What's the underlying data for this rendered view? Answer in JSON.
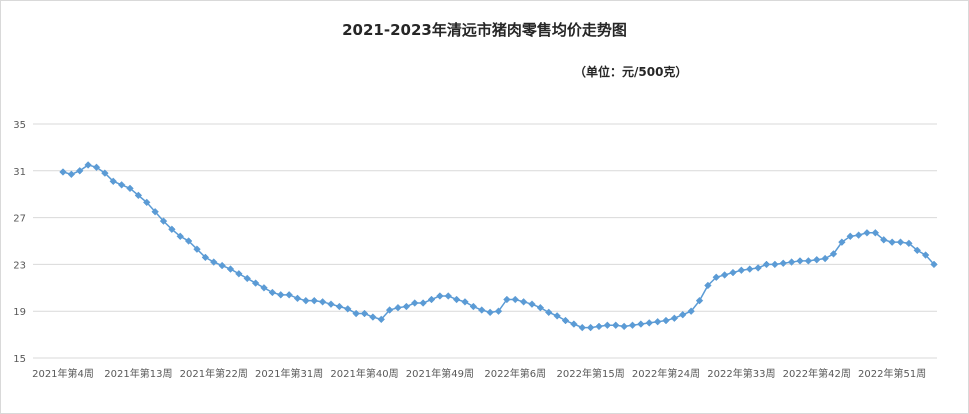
{
  "chart_data": {
    "type": "line",
    "title": "2021-2023年清远市猪肉零售均价走势图",
    "subtitle": "（单位：元/500克）",
    "ylim": [
      15,
      35
    ],
    "yticks": [
      15,
      19,
      23,
      27,
      31,
      35
    ],
    "grid": true,
    "xtick_labels": [
      {
        "index": 0,
        "label": "2021年第4周"
      },
      {
        "index": 9,
        "label": "2021年第13周"
      },
      {
        "index": 18,
        "label": "2021年第22周"
      },
      {
        "index": 27,
        "label": "2021年第31周"
      },
      {
        "index": 36,
        "label": "2021年第40周"
      },
      {
        "index": 45,
        "label": "2021年第49周"
      },
      {
        "index": 54,
        "label": "2022年第6周"
      },
      {
        "index": 63,
        "label": "2022年第15周"
      },
      {
        "index": 72,
        "label": "2022年第24周"
      },
      {
        "index": 81,
        "label": "2022年第33周"
      },
      {
        "index": 90,
        "label": "2022年第42周"
      },
      {
        "index": 99,
        "label": "2022年第51周"
      }
    ],
    "series": [
      {
        "color": "#5b9bd5",
        "values": [
          30.9,
          30.7,
          31.0,
          31.5,
          31.3,
          30.8,
          30.1,
          29.8,
          29.5,
          28.9,
          28.3,
          27.5,
          26.7,
          26.0,
          25.4,
          25.0,
          24.3,
          23.6,
          23.2,
          22.9,
          22.6,
          22.2,
          21.8,
          21.4,
          21.0,
          20.6,
          20.4,
          20.4,
          20.1,
          19.9,
          19.9,
          19.8,
          19.6,
          19.4,
          19.2,
          18.8,
          18.8,
          18.5,
          18.3,
          19.1,
          19.3,
          19.4,
          19.7,
          19.7,
          20.0,
          20.3,
          20.3,
          20.0,
          19.8,
          19.4,
          19.1,
          18.9,
          19.0,
          20.0,
          20.0,
          19.8,
          19.6,
          19.3,
          18.9,
          18.6,
          18.2,
          17.9,
          17.6,
          17.6,
          17.7,
          17.8,
          17.8,
          17.7,
          17.8,
          17.9,
          18.0,
          18.1,
          18.2,
          18.4,
          18.7,
          19.0,
          19.9,
          21.2,
          21.9,
          22.1,
          22.3,
          22.5,
          22.6,
          22.7,
          23.0,
          23.0,
          23.1,
          23.2,
          23.3,
          23.3,
          23.4,
          23.5,
          23.9,
          24.9,
          25.4,
          25.5,
          25.7,
          25.7,
          25.1,
          24.9,
          24.9,
          24.8,
          24.2,
          23.8,
          23.0
        ]
      }
    ]
  }
}
